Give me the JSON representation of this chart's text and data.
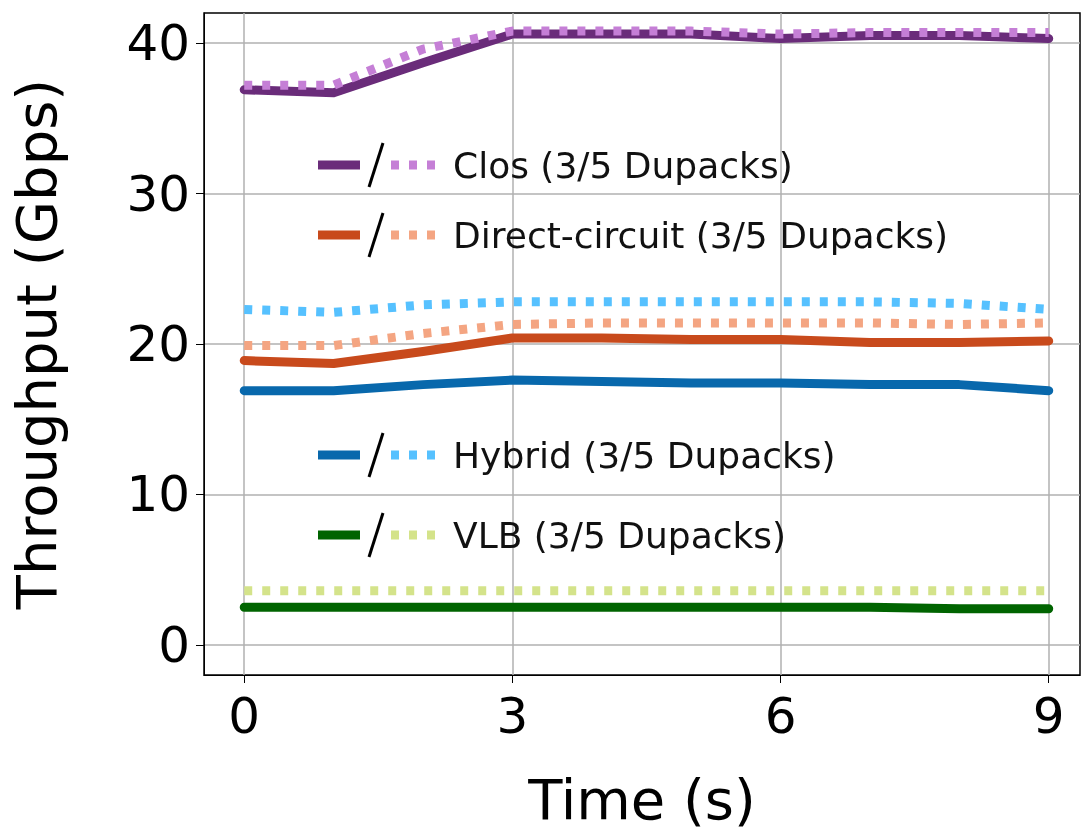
{
  "chart_data": {
    "type": "line",
    "xlabel": "Time (s)",
    "ylabel": "Throughput (Gbps)",
    "x": [
      0,
      1,
      2,
      3,
      4,
      5,
      6,
      7,
      8,
      9
    ],
    "xlim": [
      -0.45,
      9.35
    ],
    "ylim": [
      -2,
      42
    ],
    "xticks": [
      0,
      3,
      6,
      9
    ],
    "yticks": [
      0,
      10,
      20,
      30,
      40
    ],
    "grid": true,
    "legend": "center",
    "marker": "none",
    "series": [
      {
        "name": "Clos (3/5 Dupacks)",
        "color": "#6a2c7a",
        "line_style": "solid",
        "values": [
          36.9,
          36.7,
          38.7,
          40.6,
          40.6,
          40.6,
          40.3,
          40.5,
          40.5,
          40.3
        ]
      },
      {
        "color": "#c57fd6",
        "line_style": "dotted",
        "values": [
          37.2,
          37.2,
          39.6,
          40.8,
          40.8,
          40.8,
          40.6,
          40.7,
          40.7,
          40.7
        ]
      },
      {
        "name": "Direct-circuit (3/5 Dupacks)",
        "color": "#c84a1c",
        "line_style": "solid",
        "values": [
          18.9,
          18.7,
          19.5,
          20.4,
          20.4,
          20.3,
          20.3,
          20.1,
          20.1,
          20.2
        ]
      },
      {
        "color": "#f4a582",
        "line_style": "dotted",
        "values": [
          19.9,
          19.9,
          20.7,
          21.3,
          21.4,
          21.4,
          21.4,
          21.4,
          21.3,
          21.4
        ]
      },
      {
        "name": "Hybrid (3/5 Dupacks)",
        "color": "#0868ac",
        "line_style": "solid",
        "values": [
          16.9,
          16.9,
          17.3,
          17.6,
          17.5,
          17.4,
          17.4,
          17.3,
          17.3,
          16.9
        ]
      },
      {
        "color": "#56c1ff",
        "line_style": "dotted",
        "values": [
          22.3,
          22.1,
          22.6,
          22.8,
          22.8,
          22.8,
          22.8,
          22.8,
          22.7,
          22.3
        ]
      },
      {
        "name": "VLB (3/5 Dupacks)",
        "color": "#006400",
        "line_style": "solid",
        "values": [
          2.5,
          2.5,
          2.5,
          2.5,
          2.5,
          2.5,
          2.5,
          2.5,
          2.4,
          2.4
        ]
      },
      {
        "color": "#d4e38a",
        "line_style": "dotted",
        "values": [
          3.6,
          3.6,
          3.6,
          3.6,
          3.6,
          3.6,
          3.6,
          3.6,
          3.6,
          3.6
        ]
      }
    ]
  }
}
